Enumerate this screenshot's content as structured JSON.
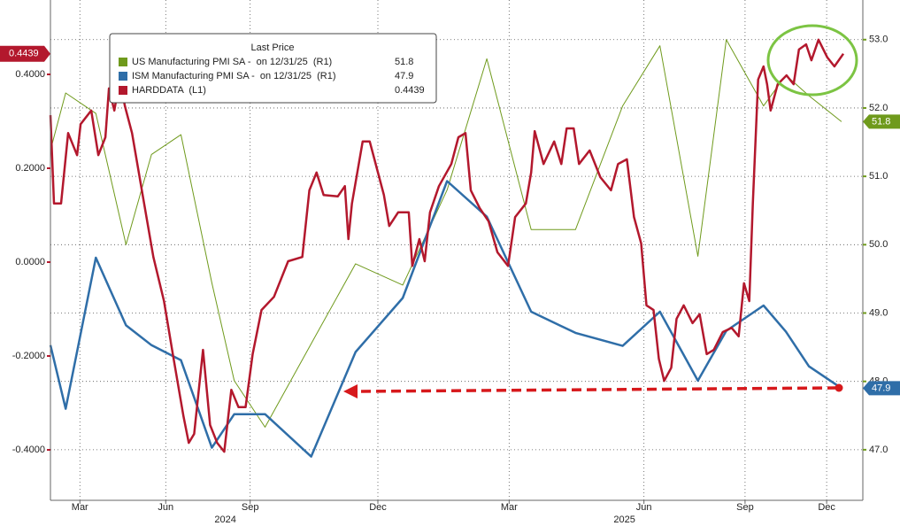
{
  "chart_data": {
    "type": "line",
    "legend_title": "Last Price",
    "xlim": [
      0,
      22.9
    ],
    "xticks": [
      {
        "value": 0.83,
        "label": "Mar"
      },
      {
        "value": 3.25,
        "label": "Jun"
      },
      {
        "value": 5.63,
        "label": "Sep"
      },
      {
        "value": 9.23,
        "label": "Dec"
      },
      {
        "value": 12.93,
        "label": "Mar"
      },
      {
        "value": 16.73,
        "label": "Jun"
      },
      {
        "value": 19.58,
        "label": "Sep"
      },
      {
        "value": 21.88,
        "label": "Dec"
      }
    ],
    "year_labels": [
      {
        "value": 4.93,
        "label": "2024"
      },
      {
        "value": 16.18,
        "label": "2025"
      }
    ],
    "ylim": [
      -0.5075,
      0.5585
    ],
    "yticks": [
      {
        "value": 0.4,
        "label": "0.4000"
      },
      {
        "value": 0.2,
        "label": "0.2000"
      },
      {
        "value": 0,
        "label": "0.0000"
      },
      {
        "value": -0.2,
        "label": "-0.2000"
      },
      {
        "value": -0.4,
        "label": "-0.4000"
      }
    ],
    "y2lim": [
      46.26,
      53.58
    ],
    "y2ticks": [
      {
        "value": 53,
        "label": "53.0"
      },
      {
        "value": 52,
        "label": "52.0"
      },
      {
        "value": 51,
        "label": "51.0"
      },
      {
        "value": 50,
        "label": "50.0"
      },
      {
        "value": 49,
        "label": "49.0"
      },
      {
        "value": 48,
        "label": "48.0"
      },
      {
        "value": 47,
        "label": "47.0"
      }
    ],
    "grid": true,
    "x": [
      0,
      0.43,
      1.28,
      2.13,
      2.85,
      3.68,
      4.55,
      5.18,
      6.05,
      7.35,
      8.6,
      9.93,
      11.18,
      12.3,
      13.55,
      14.8,
      16.13,
      17.18,
      18.25,
      19.05,
      20.1,
      20.73,
      21.38,
      22.3
    ],
    "series": [
      {
        "name": "US Manufacturing PMI SA -  on 12/31/25  (R1)",
        "color": "#6f9a1c",
        "axis": "y2",
        "last_value": 51.8,
        "values": [
          51.38,
          52.22,
          51.92,
          50.0,
          51.32,
          51.61,
          49.44,
          48.01,
          47.33,
          48.55,
          49.72,
          49.41,
          50.8,
          52.72,
          50.22,
          50.22,
          52.03,
          52.91,
          49.83,
          53.0,
          52.03,
          52.48,
          52.18,
          51.8
        ]
      },
      {
        "name": "ISM Manufacturing PMI SA -  on 12/31/25  (R1)",
        "color": "#2f6ea8",
        "axis": "y2",
        "last_value": 47.9,
        "values": [
          48.53,
          47.6,
          49.81,
          48.82,
          48.53,
          48.31,
          47.03,
          47.52,
          47.52,
          46.9,
          48.43,
          49.22,
          50.93,
          50.41,
          49.02,
          48.71,
          48.52,
          49.02,
          48.01,
          48.74,
          49.11,
          48.73,
          48.22,
          47.9
        ]
      },
      {
        "name": "HARDDATA  (L1)",
        "color": "#b3182d",
        "last_value": 0.4439,
        "x": [
          0,
          0.1,
          0.3,
          0.5,
          0.75,
          0.85,
          1.15,
          1.35,
          1.55,
          1.65,
          1.8,
          1.95,
          2.1,
          2.3,
          2.6,
          2.9,
          3.2,
          3.45,
          3.75,
          3.9,
          4.05,
          4.3,
          4.5,
          4.7,
          4.9,
          5.1,
          5.3,
          5.5,
          5.7,
          5.95,
          6.3,
          6.7,
          7.1,
          7.3,
          7.5,
          7.7,
          8.1,
          8.3,
          8.4,
          8.5,
          8.8,
          9.0,
          9.2,
          9.4,
          9.55,
          9.8,
          10.1,
          10.2,
          10.4,
          10.55,
          10.7,
          10.95,
          11.3,
          11.5,
          11.7,
          11.85,
          12.1,
          12.35,
          12.6,
          12.9,
          13.1,
          13.4,
          13.55,
          13.65,
          13.9,
          14.2,
          14.4,
          14.55,
          14.75,
          14.9,
          15.2,
          15.5,
          15.8,
          16.0,
          16.25,
          16.45,
          16.65,
          16.8,
          17.0,
          17.15,
          17.3,
          17.5,
          17.65,
          17.85,
          18.1,
          18.3,
          18.5,
          18.7,
          18.95,
          19.2,
          19.4,
          19.55,
          19.7,
          19.8,
          19.95,
          20.1,
          20.2,
          20.3,
          20.5,
          20.75,
          20.95,
          21.1,
          21.3,
          21.45,
          21.65,
          21.9,
          22.1,
          22.35
        ],
        "values": [
          0.313,
          0.125,
          0.125,
          0.275,
          0.228,
          0.294,
          0.323,
          0.228,
          0.266,
          0.37,
          0.323,
          0.389,
          0.332,
          0.275,
          0.143,
          0.011,
          -0.083,
          -0.196,
          -0.328,
          -0.385,
          -0.366,
          -0.187,
          -0.347,
          -0.385,
          -0.404,
          -0.272,
          -0.309,
          -0.309,
          -0.196,
          -0.102,
          -0.074,
          0.002,
          0.011,
          0.153,
          0.191,
          0.143,
          0.14,
          0.162,
          0.049,
          0.125,
          0.257,
          0.257,
          0.2,
          0.143,
          0.077,
          0.106,
          0.106,
          -0.008,
          0.049,
          0.002,
          0.106,
          0.162,
          0.209,
          0.266,
          0.275,
          0.153,
          0.115,
          0.087,
          0.021,
          -0.008,
          0.096,
          0.125,
          0.191,
          0.279,
          0.209,
          0.257,
          0.209,
          0.285,
          0.285,
          0.209,
          0.238,
          0.181,
          0.153,
          0.209,
          0.219,
          0.096,
          0.04,
          -0.092,
          -0.102,
          -0.206,
          -0.253,
          -0.225,
          -0.121,
          -0.092,
          -0.13,
          -0.111,
          -0.196,
          -0.187,
          -0.149,
          -0.14,
          -0.158,
          -0.045,
          -0.083,
          0.125,
          0.389,
          0.417,
          0.379,
          0.323,
          0.379,
          0.398,
          0.379,
          0.453,
          0.464,
          0.43,
          0.474,
          0.436,
          0.417,
          0.4439
        ]
      }
    ]
  }
}
